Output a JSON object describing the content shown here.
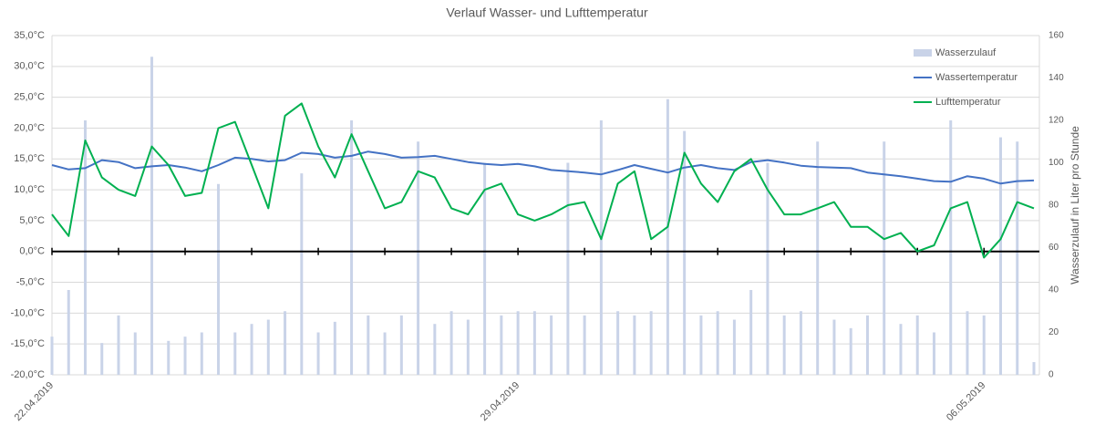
{
  "chart_data": {
    "type": "combo",
    "title": "Verlauf Wasser- und Lufttemperatur",
    "y2_label": "Wasserzulauf in Liter pro Stunde",
    "legend": "upper right",
    "grid": true,
    "categories": [
      "22.04.2019",
      null,
      null,
      null,
      null,
      null,
      null,
      null,
      null,
      null,
      null,
      null,
      null,
      null,
      null,
      null,
      null,
      null,
      null,
      null,
      null,
      null,
      null,
      null,
      null,
      null,
      null,
      null,
      "29.04.2019",
      null,
      null,
      null,
      null,
      null,
      null,
      null,
      null,
      null,
      null,
      null,
      null,
      null,
      null,
      null,
      null,
      null,
      null,
      null,
      null,
      null,
      null,
      null,
      null,
      null,
      null,
      null,
      "06.05.2019",
      null,
      null,
      null
    ],
    "ylim": [
      -20,
      35
    ],
    "yticks": [
      {
        "value": 35,
        "label": "35,0°C"
      },
      {
        "value": 30,
        "label": "30,0°C"
      },
      {
        "value": 25,
        "label": "25,0°C"
      },
      {
        "value": 20,
        "label": "20,0°C"
      },
      {
        "value": 15,
        "label": "15,0°C"
      },
      {
        "value": 10,
        "label": "10,0°C"
      },
      {
        "value": 5,
        "label": "5,0°C"
      },
      {
        "value": 0,
        "label": "0,0°C"
      },
      {
        "value": -5,
        "label": "-5,0°C"
      },
      {
        "value": -10,
        "label": "-10,0°C"
      },
      {
        "value": -15,
        "label": "-15,0°C"
      },
      {
        "value": -20,
        "label": "-20,0°C"
      }
    ],
    "y2lim": [
      0,
      160
    ],
    "y2ticks": [
      0,
      20,
      40,
      60,
      80,
      100,
      120,
      140,
      160
    ],
    "series": [
      {
        "name": "Wasserzulauf",
        "type": "bar",
        "axis": "y2",
        "color": "#c9d3e8",
        "values": [
          18,
          40,
          120,
          15,
          28,
          20,
          150,
          16,
          18,
          20,
          90,
          20,
          24,
          26,
          30,
          95,
          20,
          25,
          120,
          28,
          20,
          28,
          110,
          24,
          30,
          26,
          100,
          28,
          30,
          30,
          28,
          100,
          28,
          120,
          30,
          28,
          30,
          130,
          115,
          28,
          30,
          26,
          40,
          100,
          28,
          30,
          110,
          26,
          22,
          28,
          110,
          24,
          28,
          20,
          120,
          30,
          28,
          112,
          110,
          6
        ]
      },
      {
        "name": "Wassertemperatur",
        "type": "line",
        "color": "#4472c4",
        "values": [
          14,
          13.3,
          13.5,
          14.8,
          14.5,
          13.5,
          13.8,
          14,
          13.6,
          13,
          14,
          15.2,
          15,
          14.6,
          14.8,
          16,
          15.8,
          15.2,
          15.5,
          16.2,
          15.8,
          15.2,
          15.3,
          15.5,
          15,
          14.5,
          14.2,
          14,
          14.2,
          13.8,
          13.2,
          13,
          12.8,
          12.5,
          13.2,
          14,
          13.4,
          12.8,
          13.6,
          14,
          13.5,
          13.2,
          14.5,
          14.8,
          14.4,
          13.9,
          13.7,
          13.6,
          13.5,
          12.8,
          12.5,
          12.2,
          11.8,
          11.4,
          11.3,
          12.2,
          11.8,
          11,
          11.4,
          11.5
        ]
      },
      {
        "name": "Lufttemperatur",
        "type": "line",
        "color": "#00b050",
        "values": [
          6,
          2.5,
          18,
          12,
          10,
          9,
          17,
          14,
          9,
          9.5,
          20,
          21,
          14,
          7,
          22,
          24,
          17,
          12,
          19,
          13,
          7,
          8,
          13,
          12,
          7,
          6,
          10,
          11,
          6,
          5,
          6,
          7.5,
          8,
          2,
          11,
          13,
          2,
          4,
          16,
          11,
          8,
          13,
          15,
          10,
          6,
          6,
          7,
          8,
          4,
          4,
          2,
          3,
          0,
          1,
          7,
          8,
          -1,
          2,
          8,
          7
        ]
      }
    ]
  }
}
